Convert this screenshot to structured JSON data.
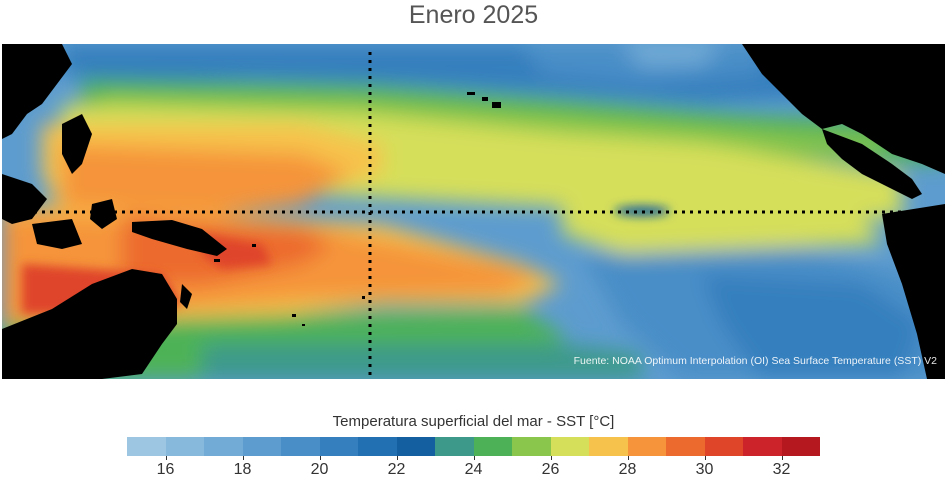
{
  "title": "Enero 2025",
  "map": {
    "source_text": "Fuente: NOAA Optimum Interpolation (OI) Sea Surface Temperature (SST) V2",
    "land_color": "#000000"
  },
  "colorbar": {
    "title": "Temperatura superficial del mar - SST  [°C]",
    "colors": [
      "#9cc6e2",
      "#86b9dc",
      "#72abd6",
      "#5d9ccf",
      "#4a8ec7",
      "#367fbe",
      "#2270b2",
      "#145f9f",
      "#3d9a8a",
      "#4db257",
      "#8ac64b",
      "#d6df5a",
      "#f7c24c",
      "#f5943a",
      "#ec6a2e",
      "#df4529",
      "#cc2229",
      "#b5181f"
    ],
    "tick_labels": [
      "16",
      "18",
      "20",
      "22",
      "24",
      "26",
      "28",
      "30",
      "32"
    ],
    "tick_values": [
      16,
      18,
      20,
      22,
      24,
      26,
      28,
      30,
      32
    ],
    "min": 15.0,
    "max": 33.0
  }
}
